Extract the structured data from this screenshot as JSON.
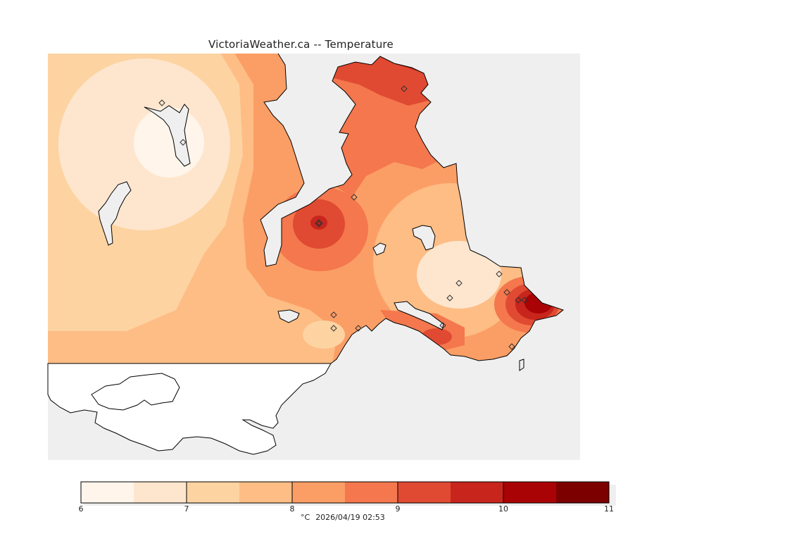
{
  "title": "VictoriaWeather.ca -- Temperature",
  "legend": {
    "unit": "°C",
    "timestamp": "2026/04/19 02:53",
    "tick_labels": [
      "6",
      "7",
      "8",
      "9",
      "10",
      "11"
    ],
    "bins": [
      {
        "from": 6.0,
        "to": 6.5,
        "color": "#fff5eb"
      },
      {
        "from": 6.5,
        "to": 7.0,
        "color": "#fee6ce"
      },
      {
        "from": 7.0,
        "to": 7.5,
        "color": "#fdd3a2"
      },
      {
        "from": 7.5,
        "to": 8.0,
        "color": "#fdbd85"
      },
      {
        "from": 8.0,
        "to": 8.5,
        "color": "#fb9e65"
      },
      {
        "from": 8.5,
        "to": 9.0,
        "color": "#f4774d"
      },
      {
        "from": 9.0,
        "to": 9.5,
        "color": "#e04a32"
      },
      {
        "from": 9.5,
        "to": 10.0,
        "color": "#c8251d"
      },
      {
        "from": 10.0,
        "to": 10.5,
        "color": "#aa0305"
      },
      {
        "from": 10.5,
        "to": 11.0,
        "color": "#7d0000"
      }
    ]
  },
  "colors": {
    "water": "#efefef",
    "land_unanalyzed": "#ffffff",
    "coast": "#000000"
  }
}
